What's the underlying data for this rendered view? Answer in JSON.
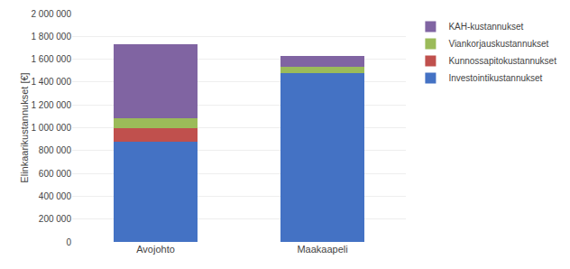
{
  "chart_data": {
    "type": "bar",
    "stacked": true,
    "categories": [
      "Avojohto",
      "Maakaapeli"
    ],
    "series": [
      {
        "name": "Investointikustannukset",
        "color": "#4472C4",
        "values": [
          880000,
          1480000
        ]
      },
      {
        "name": "Kunnossapitokustannukset",
        "color": "#C0504D",
        "values": [
          120000,
          0
        ]
      },
      {
        "name": "Viankorjauskustannukset",
        "color": "#9BBB59",
        "values": [
          80000,
          50000
        ]
      },
      {
        "name": "KAH-kustannukset",
        "color": "#8064A2",
        "values": [
          650000,
          95000
        ]
      }
    ],
    "ylabel": "Elinkaarikustannukset [€]",
    "ylim": [
      0,
      2000000
    ],
    "yticks": [
      0,
      {
        "value": 200000,
        "label": "200 000"
      },
      {
        "value": 400000,
        "label": "400 000"
      },
      {
        "value": 600000,
        "label": "600 000"
      },
      {
        "value": 800000,
        "label": "800 000"
      },
      {
        "value": 1000000,
        "label": "1 000 000"
      },
      {
        "value": 1200000,
        "label": "1 200 000"
      },
      {
        "value": 1400000,
        "label": "1 400 000"
      },
      {
        "value": 1600000,
        "label": "1 600 000"
      },
      {
        "value": 1800000,
        "label": "1 800 000"
      },
      {
        "value": 2000000,
        "label": "2 000 000"
      }
    ],
    "grid": true,
    "legend": "upper right"
  }
}
